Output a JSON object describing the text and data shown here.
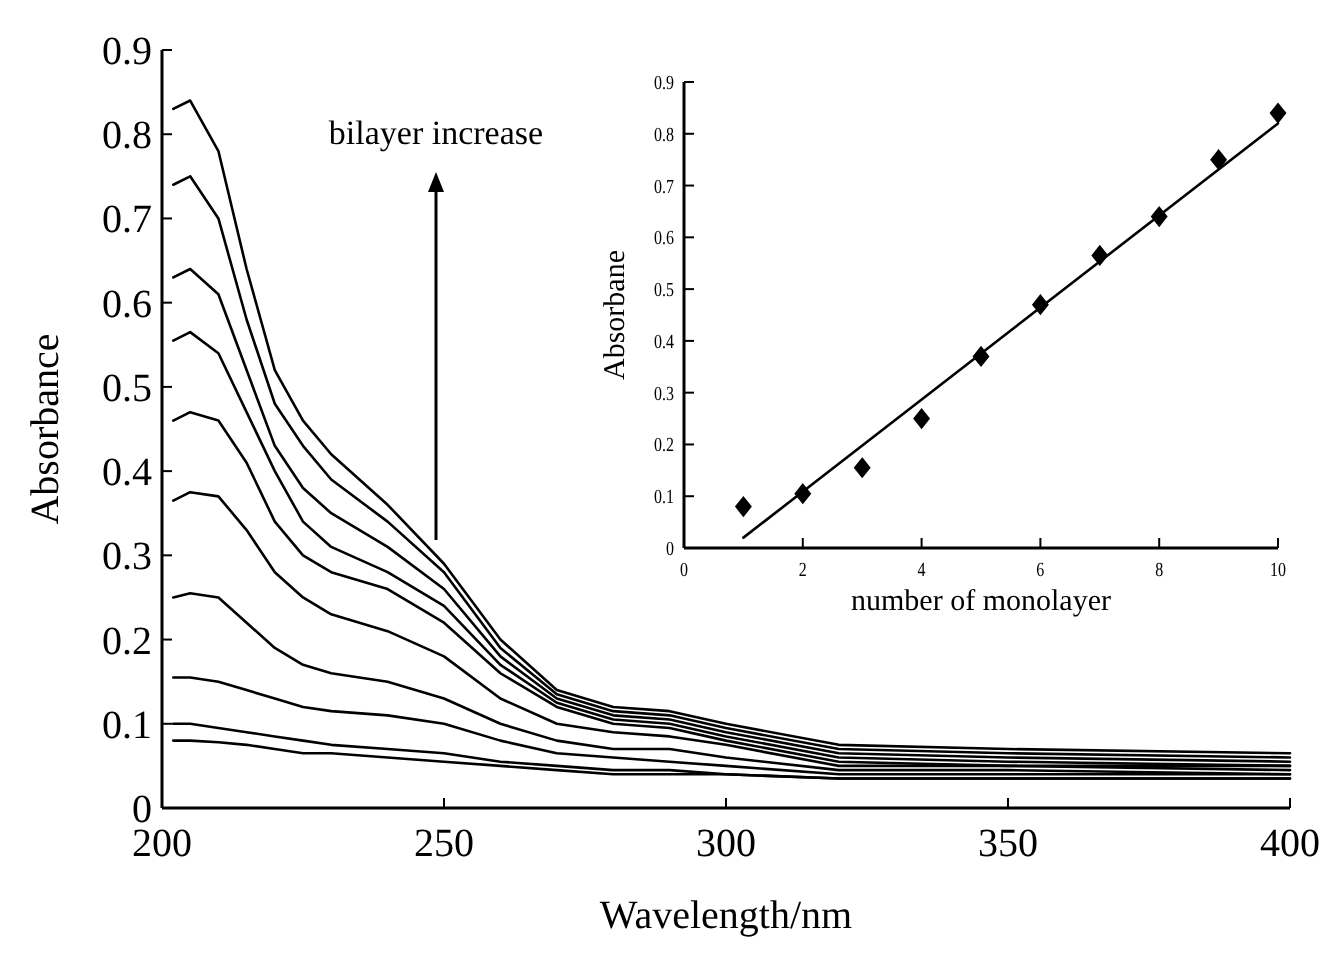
{
  "chart_data": [
    {
      "type": "line",
      "xlabel": "Wavelength/nm",
      "ylabel": "Absorbance",
      "annotations": [
        "bilayer increase"
      ],
      "xlim": [
        200,
        400
      ],
      "ylim": [
        0,
        0.9
      ],
      "xticks": [
        200,
        250,
        300,
        350,
        400
      ],
      "yticks": [
        0,
        0.1,
        0.2,
        0.3,
        0.4,
        0.5,
        0.6,
        0.7,
        0.8,
        0.9
      ],
      "grid": false,
      "line_style": "solid",
      "x": [
        202,
        205,
        210,
        215,
        220,
        225,
        230,
        240,
        250,
        260,
        270,
        280,
        290,
        300,
        320,
        350,
        400
      ],
      "series": [
        {
          "color": "#000000",
          "values": [
            0.08,
            0.08,
            0.078,
            0.075,
            0.07,
            0.065,
            0.065,
            0.06,
            0.055,
            0.05,
            0.045,
            0.04,
            0.04,
            0.04,
            0.035,
            0.035,
            0.035
          ]
        },
        {
          "color": "#000000",
          "values": [
            0.1,
            0.1,
            0.095,
            0.09,
            0.085,
            0.08,
            0.075,
            0.07,
            0.065,
            0.055,
            0.05,
            0.045,
            0.045,
            0.04,
            0.035,
            0.035,
            0.035
          ]
        },
        {
          "color": "#000000",
          "values": [
            0.155,
            0.155,
            0.15,
            0.14,
            0.13,
            0.12,
            0.115,
            0.11,
            0.1,
            0.08,
            0.065,
            0.06,
            0.055,
            0.05,
            0.04,
            0.04,
            0.04
          ]
        },
        {
          "color": "#000000",
          "values": [
            0.25,
            0.255,
            0.25,
            0.22,
            0.19,
            0.17,
            0.16,
            0.15,
            0.13,
            0.1,
            0.08,
            0.07,
            0.07,
            0.06,
            0.045,
            0.045,
            0.04
          ]
        },
        {
          "color": "#000000",
          "values": [
            0.365,
            0.375,
            0.37,
            0.33,
            0.28,
            0.25,
            0.23,
            0.21,
            0.18,
            0.13,
            0.1,
            0.09,
            0.085,
            0.075,
            0.05,
            0.05,
            0.045
          ]
        },
        {
          "color": "#000000",
          "values": [
            0.46,
            0.47,
            0.46,
            0.41,
            0.34,
            0.3,
            0.28,
            0.26,
            0.22,
            0.16,
            0.12,
            0.1,
            0.095,
            0.08,
            0.055,
            0.05,
            0.05
          ]
        },
        {
          "color": "#000000",
          "values": [
            0.555,
            0.565,
            0.54,
            0.47,
            0.4,
            0.34,
            0.31,
            0.28,
            0.24,
            0.17,
            0.125,
            0.105,
            0.1,
            0.085,
            0.06,
            0.055,
            0.05
          ]
        },
        {
          "color": "#000000",
          "values": [
            0.63,
            0.64,
            0.61,
            0.52,
            0.43,
            0.38,
            0.35,
            0.31,
            0.26,
            0.18,
            0.13,
            0.11,
            0.105,
            0.09,
            0.065,
            0.06,
            0.055
          ]
        },
        {
          "color": "#000000",
          "values": [
            0.74,
            0.75,
            0.7,
            0.58,
            0.48,
            0.43,
            0.39,
            0.34,
            0.28,
            0.19,
            0.135,
            0.115,
            0.11,
            0.095,
            0.07,
            0.065,
            0.06
          ]
        },
        {
          "color": "#000000",
          "values": [
            0.83,
            0.84,
            0.78,
            0.64,
            0.52,
            0.46,
            0.42,
            0.36,
            0.29,
            0.2,
            0.14,
            0.12,
            0.115,
            0.1,
            0.075,
            0.07,
            0.065
          ]
        }
      ]
    },
    {
      "type": "scatter",
      "xlabel": "number of monolayer",
      "ylabel": "Absorbane",
      "xlim": [
        0,
        10
      ],
      "ylim": [
        0,
        0.9
      ],
      "xticks": [
        0,
        2,
        4,
        6,
        8,
        10
      ],
      "yticks": [
        0,
        0.1,
        0.2,
        0.3,
        0.4,
        0.5,
        0.6,
        0.7,
        0.8,
        0.9
      ],
      "grid": false,
      "x": [
        1,
        2,
        3,
        4,
        5,
        6,
        7,
        8,
        9,
        10
      ],
      "series": [
        {
          "color": "#000000",
          "marker": "diamond",
          "values": [
            0.08,
            0.105,
            0.155,
            0.25,
            0.37,
            0.47,
            0.565,
            0.64,
            0.75,
            0.84
          ]
        },
        {
          "type": "line",
          "color": "#000000",
          "x": [
            1,
            10
          ],
          "values": [
            0.02,
            0.82
          ]
        }
      ]
    }
  ]
}
